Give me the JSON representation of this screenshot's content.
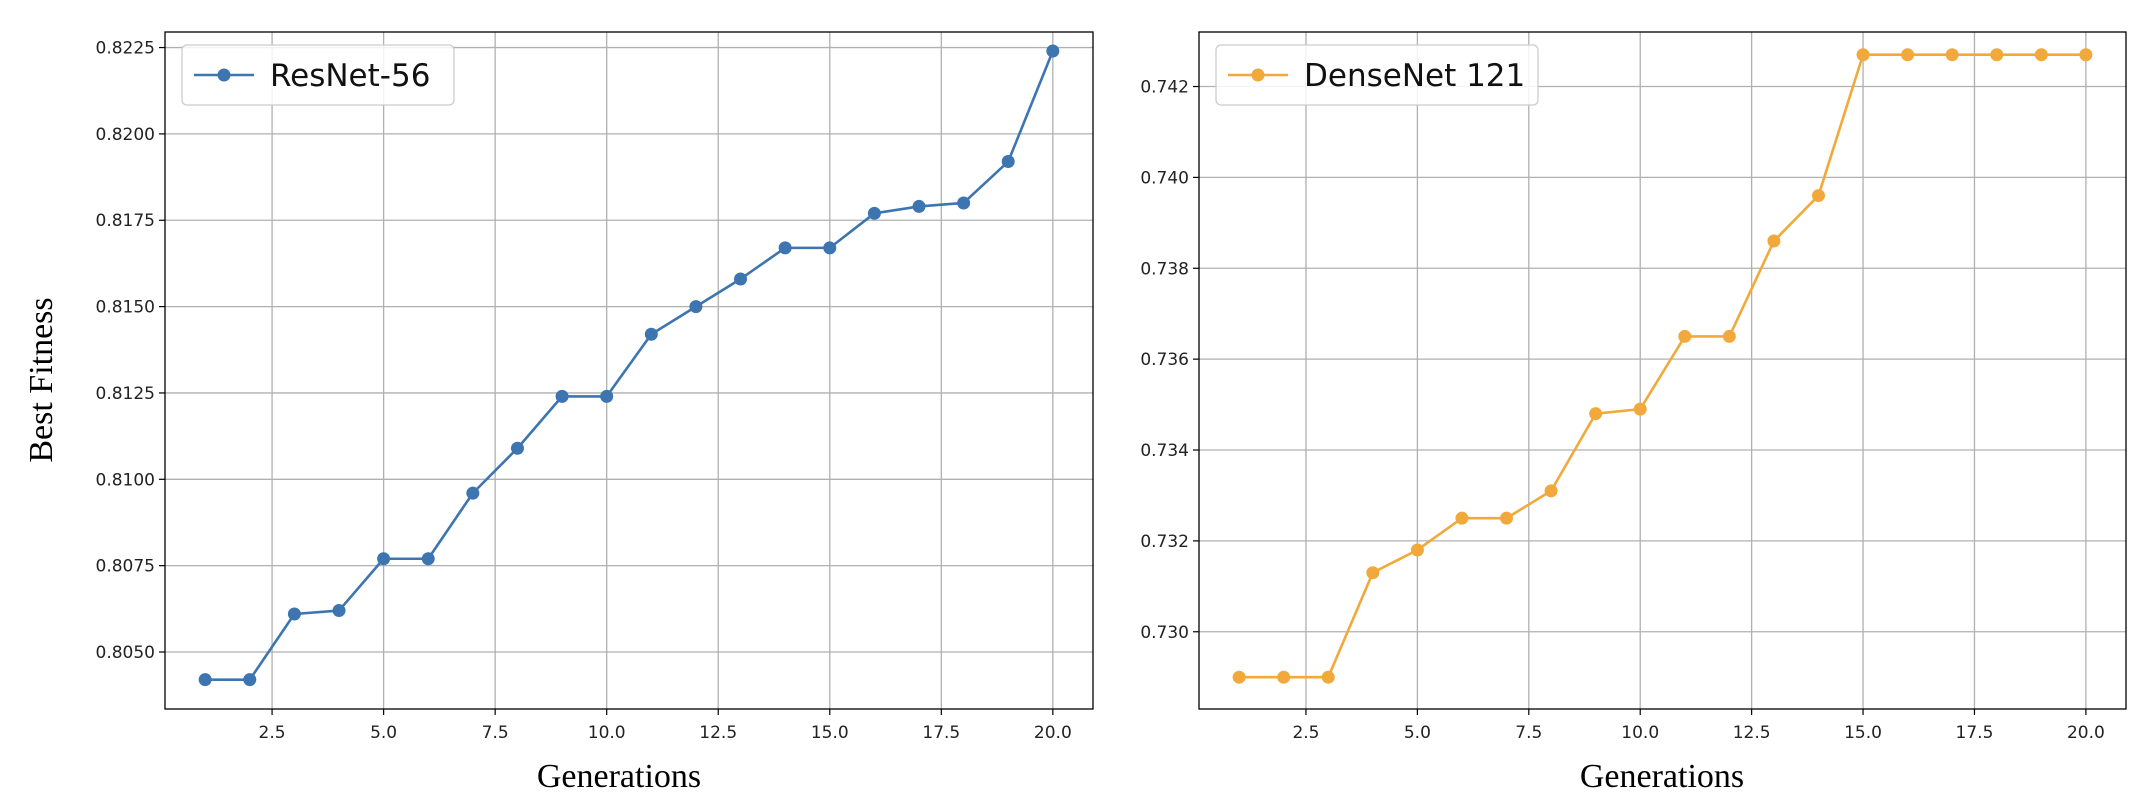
{
  "chart_data": [
    {
      "type": "line",
      "xlabel": "Generations",
      "ylabel": "Best Fitness",
      "xlim": [
        0.1,
        20.9
      ],
      "ylim": [
        0.80335,
        0.82295
      ],
      "xticks": [
        2.5,
        5.0,
        7.5,
        10.0,
        12.5,
        15.0,
        17.5,
        20.0
      ],
      "xtick_labels": [
        "2.5",
        "5.0",
        "7.5",
        "10.0",
        "12.5",
        "15.0",
        "17.5",
        "20.0"
      ],
      "yticks": [
        0.805,
        0.8075,
        0.81,
        0.8125,
        0.815,
        0.8175,
        0.82,
        0.8225
      ],
      "ytick_labels": [
        "0.8050",
        "0.8075",
        "0.8100",
        "0.8125",
        "0.8150",
        "0.8175",
        "0.8200",
        "0.8225"
      ],
      "grid": true,
      "legend_position": "top-left",
      "series": [
        {
          "name": "ResNet-56",
          "color": "#3c75b0",
          "x": [
            1,
            2,
            3,
            4,
            5,
            6,
            7,
            8,
            9,
            10,
            11,
            12,
            13,
            14,
            15,
            16,
            17,
            18,
            19,
            20
          ],
          "y": [
            0.8042,
            0.8042,
            0.8061,
            0.8062,
            0.8077,
            0.8077,
            0.8096,
            0.8109,
            0.8124,
            0.8124,
            0.8142,
            0.815,
            0.8158,
            0.8167,
            0.8167,
            0.8177,
            0.8179,
            0.818,
            0.8192,
            0.8224
          ]
        }
      ]
    },
    {
      "type": "line",
      "xlabel": "Generations",
      "ylabel": "",
      "xlim": [
        0.1,
        20.9
      ],
      "ylim": [
        0.7283,
        0.7432
      ],
      "xticks": [
        2.5,
        5.0,
        7.5,
        10.0,
        12.5,
        15.0,
        17.5,
        20.0
      ],
      "xtick_labels": [
        "2.5",
        "5.0",
        "7.5",
        "10.0",
        "12.5",
        "15.0",
        "17.5",
        "20.0"
      ],
      "yticks": [
        0.73,
        0.732,
        0.734,
        0.736,
        0.738,
        0.74,
        0.742
      ],
      "ytick_labels": [
        "0.730",
        "0.732",
        "0.734",
        "0.736",
        "0.738",
        "0.740",
        "0.742"
      ],
      "grid": true,
      "legend_position": "top-left",
      "series": [
        {
          "name": "DenseNet 121",
          "color": "#f2a93b",
          "x": [
            1,
            2,
            3,
            4,
            5,
            6,
            7,
            8,
            9,
            10,
            11,
            12,
            13,
            14,
            15,
            16,
            17,
            18,
            19,
            20
          ],
          "y": [
            0.729,
            0.729,
            0.729,
            0.7313,
            0.7318,
            0.7325,
            0.7325,
            0.7331,
            0.7348,
            0.7349,
            0.7365,
            0.7365,
            0.7386,
            0.7396,
            0.7427,
            0.7427,
            0.7427,
            0.7427,
            0.7427,
            0.7427
          ]
        }
      ]
    }
  ]
}
